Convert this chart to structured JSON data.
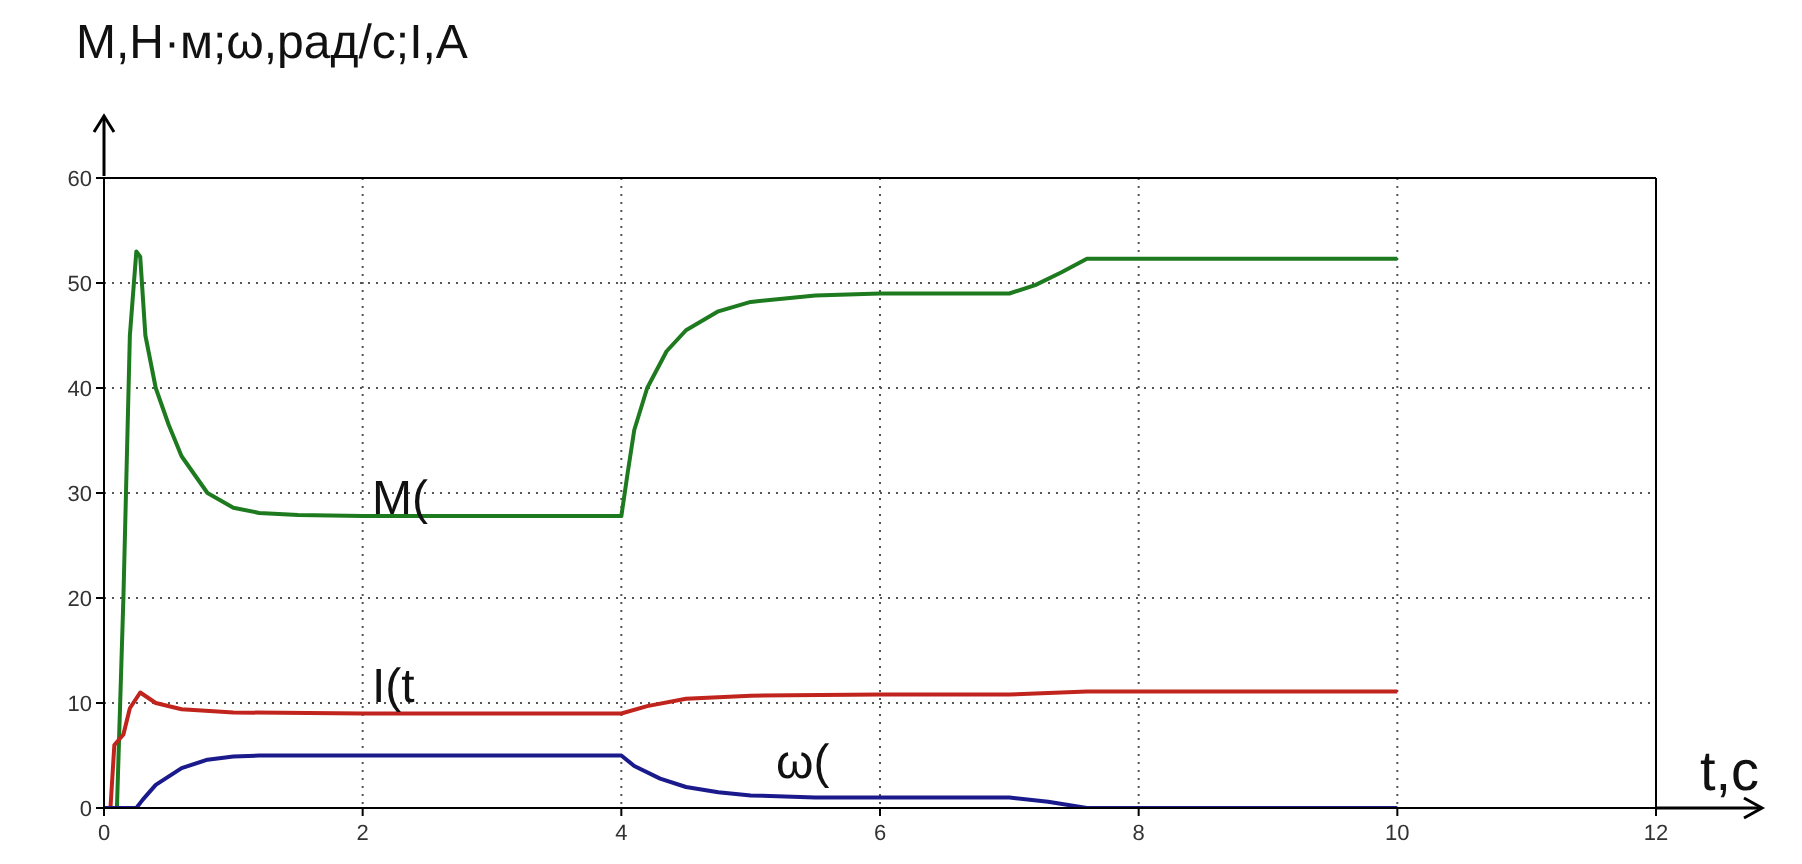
{
  "chart_data": {
    "type": "line",
    "xlabel": "t,c",
    "ylabel": "M,Н·м;ω,рад/с;I,A",
    "xlim": [
      0,
      12
    ],
    "xticks": [
      0,
      2,
      4,
      6,
      8,
      10,
      12
    ],
    "ylim": [
      0,
      60
    ],
    "yticks": [
      0,
      10,
      20,
      30,
      40,
      50,
      60
    ],
    "grid": true,
    "line_style": "solid",
    "marker": "none",
    "series": [
      {
        "color": "#1e7a1e",
        "x": [
          0,
          0.1,
          0.15,
          0.2,
          0.25,
          0.28,
          0.32,
          0.4,
          0.5,
          0.6,
          0.8,
          1.0,
          1.2,
          1.5,
          2,
          4,
          4.05,
          4.1,
          4.2,
          4.35,
          4.5,
          4.75,
          5,
          5.5,
          6,
          7,
          7.2,
          7.4,
          7.6,
          10
        ],
        "values": [
          0,
          0,
          20,
          45,
          53,
          52.5,
          45,
          40,
          36.5,
          33.5,
          30,
          28.6,
          28.1,
          27.9,
          27.8,
          27.8,
          32,
          36,
          40,
          43.5,
          45.5,
          47.3,
          48.2,
          48.8,
          49,
          49,
          49.8,
          51,
          52.3,
          52.3
        ]
      },
      {
        "color": "#c0241c",
        "x": [
          0.05,
          0.08,
          0.15,
          0.2,
          0.28,
          0.4,
          0.6,
          1.0,
          2,
          4,
          4.2,
          4.5,
          5,
          6,
          7,
          7.6,
          10
        ],
        "values": [
          0,
          6,
          7,
          9.5,
          11,
          10,
          9.4,
          9.1,
          9,
          9,
          9.7,
          10.4,
          10.7,
          10.8,
          10.8,
          11.1,
          11.1
        ]
      },
      {
        "color": "#1a1a8c",
        "x": [
          0,
          0.25,
          0.3,
          0.4,
          0.6,
          0.8,
          1.0,
          1.2,
          4,
          4.1,
          4.3,
          4.5,
          4.75,
          5,
          5.5,
          7,
          7.3,
          7.6,
          10
        ],
        "values": [
          0,
          0,
          0.8,
          2.2,
          3.8,
          4.6,
          4.9,
          5,
          5,
          4,
          2.8,
          2,
          1.5,
          1.2,
          1,
          1,
          0.6,
          0,
          0
        ]
      }
    ],
    "annotations": [
      "M(",
      "I(t",
      "ω("
    ]
  }
}
